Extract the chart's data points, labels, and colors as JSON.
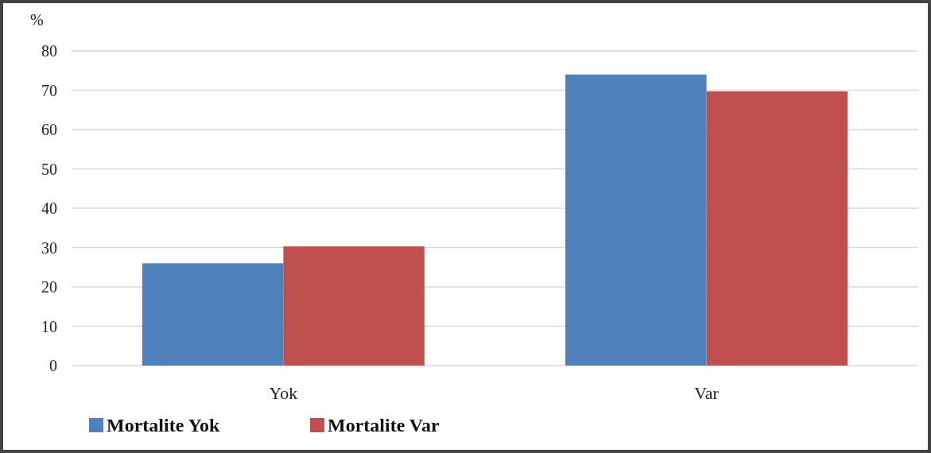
{
  "chart_data": {
    "type": "bar",
    "ylabel": "%",
    "categories": [
      "Yok",
      "Var"
    ],
    "series": [
      {
        "name": "Mortalite Yok",
        "color": "#4f81bd",
        "values": [
          26,
          74
        ]
      },
      {
        "name": "Mortalite Var",
        "color": "#c0504d",
        "values": [
          30.3,
          69.7
        ]
      }
    ],
    "ylim": [
      0,
      80
    ],
    "yticks": [
      0,
      10,
      20,
      30,
      40,
      50,
      60,
      70,
      80
    ],
    "grid": "y",
    "legend": "bottom left"
  }
}
